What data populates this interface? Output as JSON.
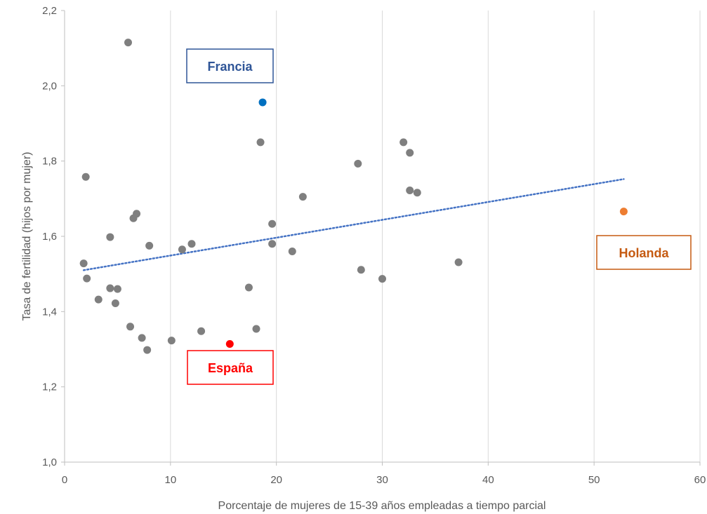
{
  "chart_data": {
    "type": "scatter",
    "title": "",
    "xlabel": "Porcentaje de mujeres de 15-39 años empleadas a tiempo parcial",
    "ylabel": "Tasa de fertilidad (hijos por mujer)",
    "xlim": [
      0,
      60
    ],
    "ylim": [
      1.0,
      2.2
    ],
    "x_ticks": [
      0,
      10,
      20,
      30,
      40,
      50,
      60
    ],
    "y_ticks": [
      1.0,
      1.2,
      1.4,
      1.6,
      1.8,
      2.0,
      2.2
    ],
    "x_tick_labels": [
      "0",
      "10",
      "20",
      "30",
      "40",
      "50",
      "60"
    ],
    "y_tick_labels": [
      "1,0",
      "1,2",
      "1,4",
      "1,6",
      "1,8",
      "2,0",
      "2,2"
    ],
    "grid": {
      "vertical": true,
      "horizontal": false
    },
    "point_color": "#7f7f7f",
    "points": [
      {
        "x": 6.0,
        "y": 2.115
      },
      {
        "x": 1.8,
        "y": 1.528
      },
      {
        "x": 2.0,
        "y": 1.758
      },
      {
        "x": 2.1,
        "y": 1.488
      },
      {
        "x": 3.2,
        "y": 1.432
      },
      {
        "x": 4.3,
        "y": 1.598
      },
      {
        "x": 4.3,
        "y": 1.462
      },
      {
        "x": 4.8,
        "y": 1.422
      },
      {
        "x": 5.0,
        "y": 1.46
      },
      {
        "x": 6.2,
        "y": 1.36
      },
      {
        "x": 6.5,
        "y": 1.648
      },
      {
        "x": 6.8,
        "y": 1.66
      },
      {
        "x": 7.3,
        "y": 1.33
      },
      {
        "x": 7.8,
        "y": 1.298
      },
      {
        "x": 8.0,
        "y": 1.575
      },
      {
        "x": 10.1,
        "y": 1.323
      },
      {
        "x": 11.1,
        "y": 1.565
      },
      {
        "x": 12.0,
        "y": 1.58
      },
      {
        "x": 12.9,
        "y": 1.348
      },
      {
        "x": 17.4,
        "y": 1.464
      },
      {
        "x": 18.1,
        "y": 1.354
      },
      {
        "x": 18.5,
        "y": 1.85
      },
      {
        "x": 19.6,
        "y": 1.633
      },
      {
        "x": 19.6,
        "y": 1.58
      },
      {
        "x": 21.5,
        "y": 1.56
      },
      {
        "x": 22.5,
        "y": 1.705
      },
      {
        "x": 27.7,
        "y": 1.793
      },
      {
        "x": 28.0,
        "y": 1.511
      },
      {
        "x": 30.0,
        "y": 1.487
      },
      {
        "x": 32.0,
        "y": 1.85
      },
      {
        "x": 32.6,
        "y": 1.822
      },
      {
        "x": 32.6,
        "y": 1.722
      },
      {
        "x": 33.3,
        "y": 1.716
      },
      {
        "x": 37.2,
        "y": 1.531
      }
    ],
    "highlighted": [
      {
        "name": "Francia",
        "x": 18.7,
        "y": 1.956,
        "color": "#0070c0",
        "text_color": "#2f5597",
        "border_color": "#2f5597"
      },
      {
        "name": "España",
        "x": 15.6,
        "y": 1.314,
        "color": "#ff0000",
        "text_color": "#ff0000",
        "border_color": "#ff0000"
      },
      {
        "name": "Holanda",
        "x": 52.8,
        "y": 1.666,
        "color": "#ed7d31",
        "text_color": "#c55a11",
        "border_color": "#c55a11"
      }
    ],
    "trendline": {
      "type": "linear",
      "style": "dotted",
      "color": "#4472c4",
      "x": [
        1.8,
        52.8
      ],
      "y": [
        1.51,
        1.752
      ]
    }
  }
}
